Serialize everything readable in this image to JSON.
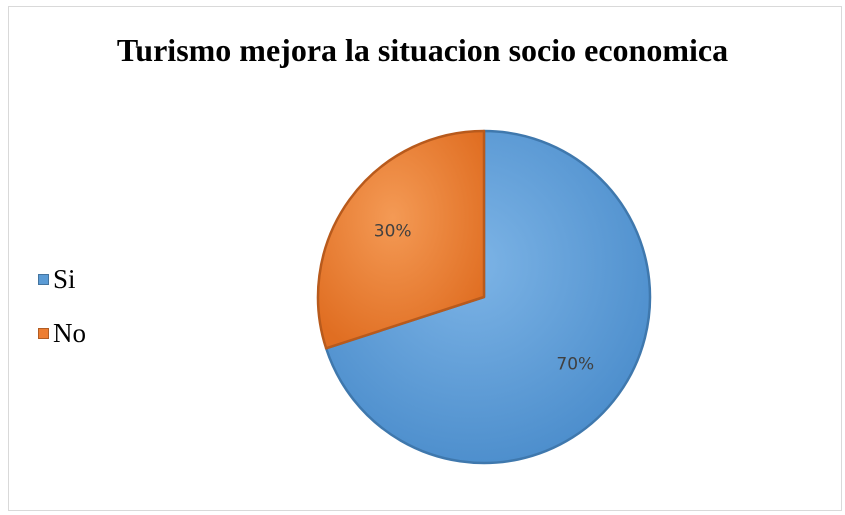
{
  "chart_data": {
    "type": "pie",
    "title": "Turismo mejora la situacion socio economica",
    "categories": [
      "Si",
      "No"
    ],
    "values": [
      70,
      30
    ],
    "data_labels": [
      "70%",
      "30%"
    ],
    "colors": [
      "#5b9bd5",
      "#ed7d31"
    ],
    "legend_position": "left"
  }
}
